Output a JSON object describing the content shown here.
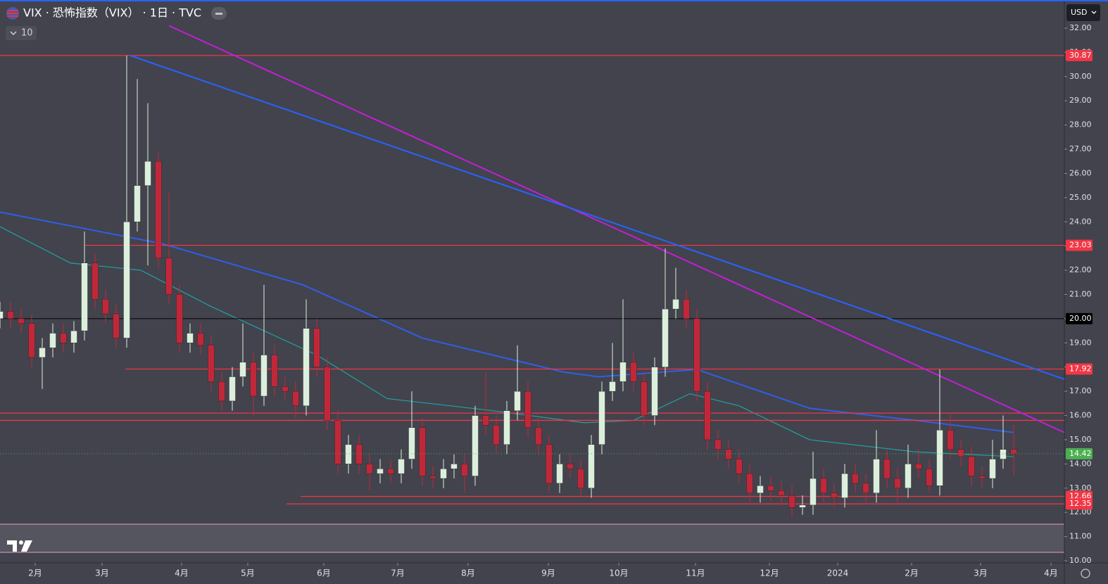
{
  "header": {
    "title": "VIX · 恐怖指数（VIX） · 1日 · TVC",
    "interval_count": "10",
    "currency": "USD"
  },
  "chart_data": {
    "type": "candlestick",
    "xlim": [
      0,
      302.4
    ],
    "ylim": [
      10,
      32
    ],
    "xticks": [
      {
        "value": 10,
        "label": "2月"
      },
      {
        "value": 29,
        "label": "3月"
      },
      {
        "value": 51.6,
        "label": "4月"
      },
      {
        "value": 70.4,
        "label": "5月"
      },
      {
        "value": 92,
        "label": "6月"
      },
      {
        "value": 113,
        "label": "7月"
      },
      {
        "value": 133,
        "label": "8月"
      },
      {
        "value": 155.8,
        "label": "9月"
      },
      {
        "value": 175.8,
        "label": "10月"
      },
      {
        "value": 197.6,
        "label": "11月"
      },
      {
        "value": 218.6,
        "label": "12月"
      },
      {
        "value": 238,
        "label": "2024"
      },
      {
        "value": 259,
        "label": "2月"
      },
      {
        "value": 278.6,
        "label": "3月"
      },
      {
        "value": 298.6,
        "label": "4月"
      }
    ],
    "yticks": [
      {
        "value": 10,
        "label": "10.00"
      },
      {
        "value": 11,
        "label": "11.00"
      },
      {
        "value": 12,
        "label": "12.00"
      },
      {
        "value": 13,
        "label": "13.00"
      },
      {
        "value": 14,
        "label": "14.00"
      },
      {
        "value": 15,
        "label": "15.00"
      },
      {
        "value": 16,
        "label": "16.00"
      },
      {
        "value": 17,
        "label": "17.00"
      },
      {
        "value": 18,
        "label": "18.00"
      },
      {
        "value": 19,
        "label": "19.00"
      },
      {
        "value": 20,
        "label": "20.00"
      },
      {
        "value": 21,
        "label": "21.00"
      },
      {
        "value": 22,
        "label": "22.00"
      },
      {
        "value": 23,
        "label": "23.00"
      },
      {
        "value": 24,
        "label": "24.00"
      },
      {
        "value": 25,
        "label": "25.00"
      },
      {
        "value": 26,
        "label": "26.00"
      },
      {
        "value": 27,
        "label": "27.00"
      },
      {
        "value": 28,
        "label": "28.00"
      },
      {
        "value": 29,
        "label": "29.00"
      },
      {
        "value": 30,
        "label": "30.00"
      },
      {
        "value": 31,
        "label": "31.00"
      },
      {
        "value": 32,
        "label": "32.00"
      }
    ],
    "up_color": "#dcefdc",
    "down_color": "#c0283a",
    "x": [
      0,
      3,
      6,
      9,
      12,
      15,
      18,
      21,
      24,
      27,
      30,
      33,
      36,
      39,
      42,
      45,
      48,
      51,
      54,
      57,
      60,
      63,
      66,
      69,
      72,
      75,
      78,
      81,
      84,
      87,
      90,
      93,
      96,
      99,
      102,
      105,
      108,
      111,
      114,
      117,
      120,
      123,
      126,
      129,
      132,
      135,
      138,
      141,
      144,
      147,
      150,
      153,
      156,
      159,
      162,
      165,
      168,
      171,
      174,
      177,
      180,
      183,
      186,
      189,
      192,
      195,
      198,
      201,
      204,
      207,
      210,
      213,
      216,
      219,
      222,
      225,
      228,
      231,
      234,
      237,
      240,
      243,
      246,
      249,
      252,
      255,
      258,
      261,
      264,
      267,
      270,
      273,
      276,
      279,
      282,
      285,
      288
    ],
    "open": [
      20.0,
      20.3,
      20.0,
      19.8,
      18.4,
      18.8,
      19.4,
      19.0,
      19.5,
      22.3,
      20.8,
      20.2,
      19.2,
      24.0,
      25.5,
      26.5,
      22.5,
      21.0,
      19.0,
      19.4,
      18.9,
      17.4,
      16.6,
      17.6,
      18.2,
      16.8,
      18.5,
      17.2,
      17.0,
      16.4,
      19.6,
      18.0,
      15.8,
      14.0,
      14.8,
      14.0,
      13.6,
      13.8,
      13.6,
      14.2,
      15.5,
      13.5,
      13.4,
      13.8,
      14.0,
      13.5,
      16.0,
      15.6,
      14.8,
      16.2,
      17.0,
      15.5,
      14.8,
      13.2,
      14.0,
      13.8,
      13.0,
      14.8,
      17.0,
      17.4,
      18.2,
      17.4,
      16.0,
      18.0,
      20.4,
      20.8,
      20.0,
      17.0,
      15.0,
      14.6,
      14.2,
      13.6,
      12.8,
      13.1,
      12.9,
      12.7,
      12.2,
      12.3,
      13.4,
      12.8,
      12.6,
      13.6,
      13.2,
      12.8,
      14.2,
      13.4,
      13.0,
      14.0,
      13.8,
      13.1,
      15.4,
      14.6,
      14.3,
      13.5,
      13.4,
      14.2,
      14.6
    ],
    "high": [
      20.7,
      20.7,
      20.4,
      20.2,
      19.2,
      19.8,
      19.8,
      19.9,
      23.6,
      22.7,
      21.2,
      20.6,
      30.87,
      29.9,
      28.9,
      26.9,
      25.2,
      21.4,
      19.8,
      19.8,
      19.3,
      17.8,
      18.0,
      19.8,
      18.6,
      21.4,
      18.9,
      17.6,
      17.4,
      20.8,
      20.0,
      18.4,
      16.2,
      15.2,
      15.2,
      14.4,
      14.2,
      14.2,
      14.6,
      17.0,
      15.9,
      13.9,
      14.2,
      14.4,
      14.4,
      16.4,
      17.8,
      16.0,
      16.6,
      18.9,
      17.4,
      15.9,
      15.2,
      14.4,
      14.4,
      14.2,
      15.2,
      17.4,
      19.0,
      20.8,
      18.6,
      17.8,
      18.4,
      22.9,
      22.1,
      21.2,
      20.4,
      17.4,
      15.4,
      15.0,
      14.6,
      14.0,
      13.5,
      13.5,
      13.3,
      13.1,
      12.7,
      14.5,
      13.8,
      13.2,
      14.0,
      14.0,
      13.6,
      15.4,
      14.6,
      13.8,
      14.8,
      14.6,
      14.2,
      17.9,
      16.1,
      15.0,
      14.7,
      13.9,
      15.0,
      16.0,
      15.6
    ],
    "low": [
      19.6,
      19.6,
      19.4,
      18.0,
      17.1,
      18.4,
      18.6,
      18.6,
      19.1,
      20.4,
      19.8,
      18.8,
      18.8,
      23.6,
      22.2,
      22.1,
      20.6,
      18.6,
      18.6,
      18.5,
      17.0,
      16.2,
      16.2,
      17.2,
      16.0,
      16.4,
      16.8,
      16.6,
      15.9,
      16.0,
      17.6,
      15.4,
      13.6,
      13.6,
      13.6,
      12.9,
      13.2,
      13.2,
      13.2,
      13.8,
      13.1,
      13.0,
      13.0,
      13.4,
      12.8,
      13.1,
      15.2,
      14.4,
      14.4,
      15.8,
      15.1,
      14.4,
      12.8,
      12.8,
      13.4,
      12.7,
      12.6,
      14.4,
      16.6,
      17.0,
      17.0,
      15.6,
      15.6,
      17.6,
      20.0,
      19.6,
      16.6,
      14.6,
      14.2,
      13.8,
      13.2,
      12.4,
      12.4,
      12.5,
      12.3,
      11.8,
      11.9,
      11.9,
      12.4,
      12.2,
      12.2,
      12.8,
      12.4,
      12.4,
      13.0,
      12.4,
      12.6,
      13.4,
      12.8,
      12.7,
      14.2,
      13.9,
      13.1,
      13.0,
      13.0,
      13.8,
      13.5
    ],
    "close": [
      20.3,
      20.0,
      19.8,
      18.4,
      18.8,
      19.4,
      19.0,
      19.5,
      22.3,
      20.8,
      20.2,
      19.2,
      24.0,
      25.5,
      26.5,
      22.5,
      21.0,
      19.0,
      19.4,
      18.9,
      17.4,
      16.6,
      17.6,
      18.2,
      16.8,
      18.5,
      17.2,
      17.0,
      16.4,
      19.6,
      18.0,
      15.8,
      14.0,
      14.8,
      14.0,
      13.6,
      13.8,
      13.6,
      14.2,
      15.5,
      13.5,
      13.4,
      13.8,
      14.0,
      13.5,
      16.0,
      15.6,
      14.8,
      16.2,
      17.0,
      15.5,
      14.8,
      13.2,
      14.0,
      13.8,
      13.0,
      14.8,
      17.0,
      17.4,
      18.2,
      17.4,
      16.0,
      18.0,
      20.4,
      20.8,
      20.0,
      17.0,
      15.0,
      14.6,
      14.2,
      13.6,
      12.8,
      13.1,
      12.9,
      12.7,
      12.2,
      12.3,
      13.4,
      12.8,
      12.6,
      13.6,
      13.2,
      12.8,
      14.2,
      13.4,
      13.0,
      14.0,
      13.8,
      13.1,
      15.4,
      14.6,
      14.3,
      13.5,
      13.4,
      14.2,
      14.6,
      14.42
    ],
    "last_price_color": "#4caf50",
    "moving_averages": [
      {
        "color": "#2f5fe8",
        "x": [
          0,
          46,
          86,
          120,
          160,
          170,
          198,
          230,
          260,
          288
        ],
        "values": [
          24.4,
          23.1,
          21.4,
          19.2,
          17.8,
          17.6,
          17.9,
          16.3,
          15.8,
          15.3
        ]
      },
      {
        "color": "#1fa3a3",
        "x": [
          0,
          20,
          40,
          60,
          90,
          110,
          140,
          166,
          180,
          196,
          210,
          230,
          260,
          288
        ],
        "values": [
          23.8,
          22.3,
          22.0,
          20.5,
          18.5,
          16.7,
          16.2,
          15.7,
          15.8,
          16.9,
          16.4,
          15.0,
          14.5,
          14.3
        ]
      }
    ],
    "hlines": [
      {
        "value": 30.87,
        "color": "#f23645",
        "from": 0
      },
      {
        "value": 23.03,
        "color": "#f23645",
        "from": 24
      },
      {
        "value": 20,
        "label": "20.00",
        "color": "#111111",
        "from": 0
      },
      {
        "value": 17.92,
        "color": "#f23645",
        "from": 35.6
      },
      {
        "value": 16.1,
        "color": "#f23645",
        "from": 0
      },
      {
        "value": 15.8,
        "color": "#f23645",
        "from": 0
      },
      {
        "value": 12.66,
        "color": "#f23645",
        "from": 85.4
      },
      {
        "value": 12.35,
        "color": "#f23645",
        "from": 81.4
      }
    ],
    "trendlines": [
      {
        "color": "#c21fd6",
        "x": [
          48,
          302.4
        ],
        "y": [
          32.1,
          15.3
        ]
      },
      {
        "color": "#2962ff",
        "x": [
          37,
          302.4
        ],
        "y": [
          30.87,
          17.5
        ]
      }
    ]
  }
}
